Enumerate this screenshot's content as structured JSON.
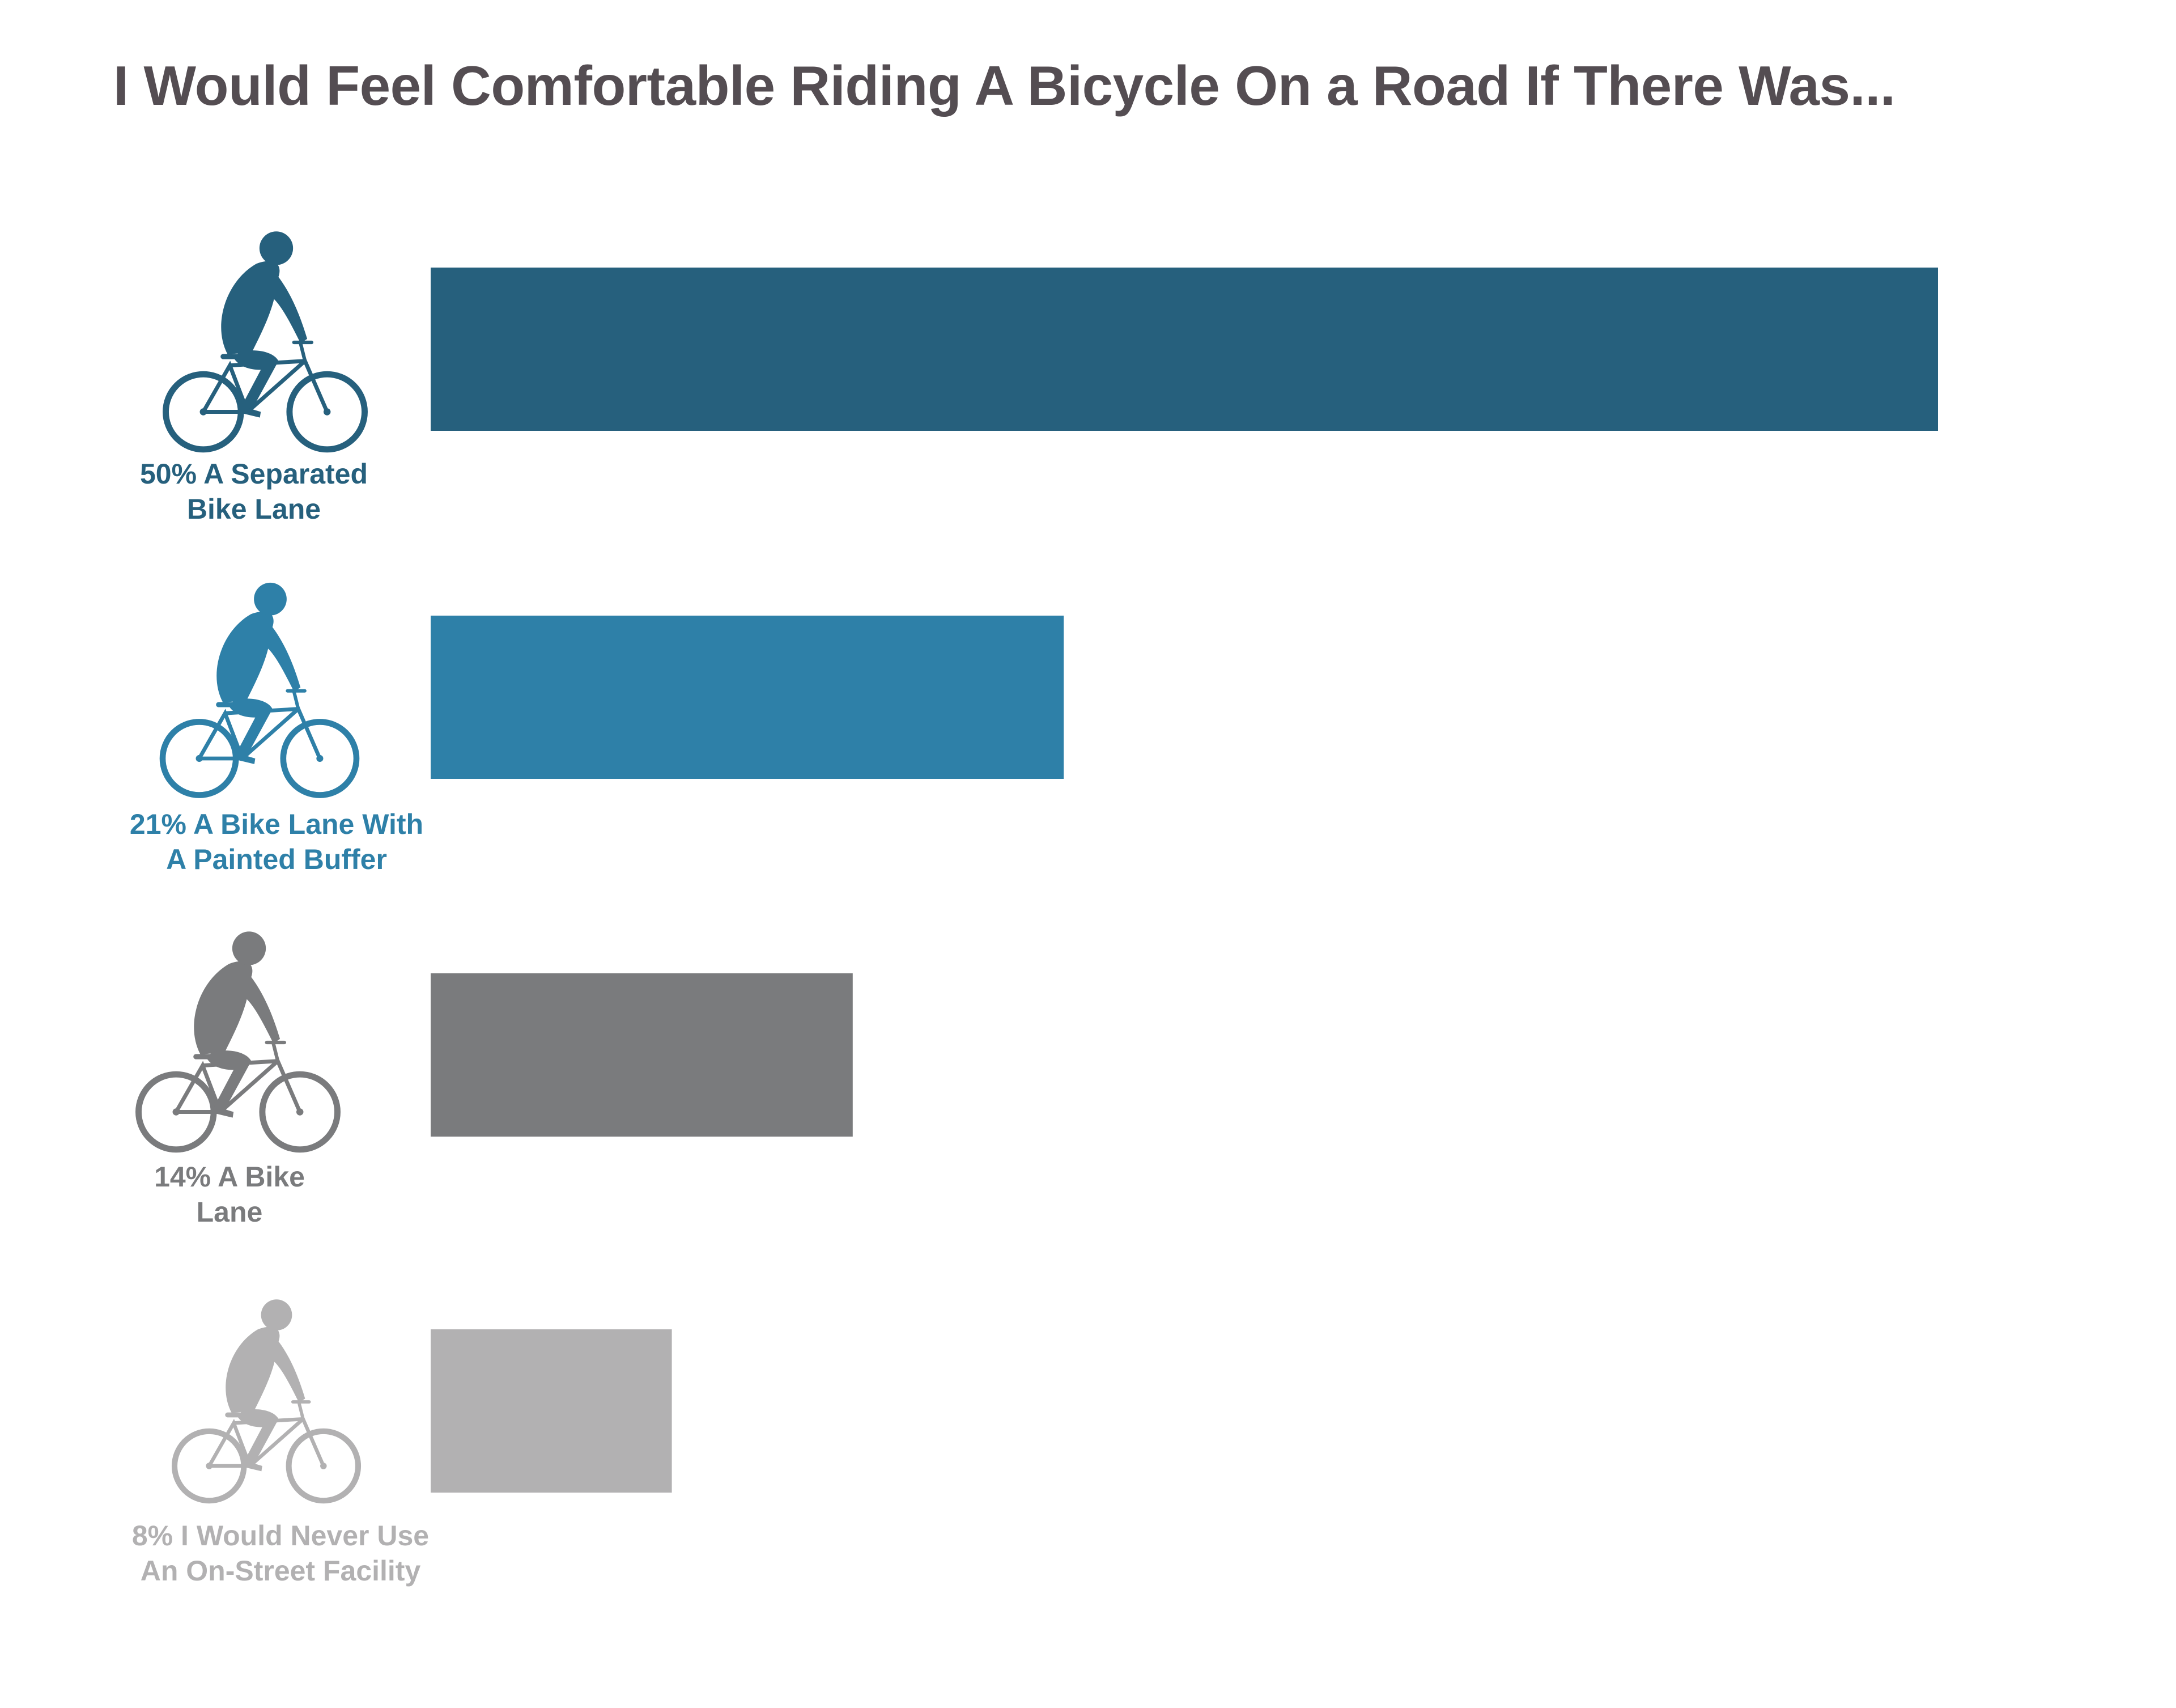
{
  "chart_data": {
    "type": "bar",
    "orientation": "horizontal",
    "title": "I Would Feel Comfortable Riding A Bicycle On a Road If There Was...",
    "xlabel": "",
    "ylabel": "",
    "xlim": [
      0,
      50
    ],
    "grid": false,
    "legend": "none",
    "categories": [
      {
        "percent_label": "50%",
        "line1": "50% A Separated",
        "line2": "Bike Lane",
        "value": 50,
        "color": "#26607d",
        "icon": "cyclist-commuter-icon"
      },
      {
        "percent_label": "21%",
        "line1": "21% A Bike Lane With",
        "line2": "A Painted Buffer",
        "value": 21,
        "color": "#2e80a8",
        "icon": "cyclist-city-bike-icon"
      },
      {
        "percent_label": "14%",
        "line1": "14% A Bike",
        "line2": "Lane",
        "value": 14,
        "color": "#7a7b7d",
        "icon": "cyclist-road-bike-icon"
      },
      {
        "percent_label": "8%",
        "line1": "8% I Would Never Use",
        "line2": "An On-Street Facility",
        "value": 8,
        "color": "#b2b1b2",
        "icon": "cyclist-casual-icon"
      }
    ]
  }
}
